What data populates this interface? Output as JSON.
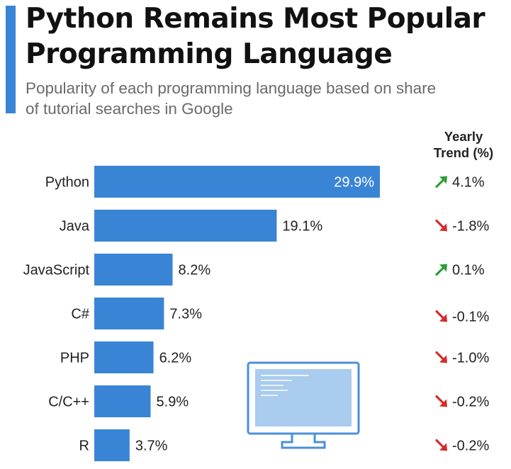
{
  "header": {
    "title_line1": "Python Remains Most Popular",
    "title_line2": "Programming Language",
    "subtitle_line1": "Popularity of each programming language based on share",
    "subtitle_line2": "of tutorial searches in Google",
    "trend_header_line1": "Yearly",
    "trend_header_line2": "Trend (%)"
  },
  "colors": {
    "accent": "#3a84d6",
    "bar": "#3a84d6",
    "trend_up": "#2e9e3a",
    "trend_down": "#d62b2b",
    "monitor_screen": "#a9ccef",
    "monitor_outline": "#4a90d9"
  },
  "chart_data": {
    "type": "bar",
    "orientation": "horizontal",
    "title": "Python Remains Most Popular Programming Language",
    "subtitle": "Popularity of each programming language based on share of tutorial searches in Google",
    "categories": [
      "Python",
      "Java",
      "JavaScript",
      "C#",
      "PHP",
      "C/C++",
      "R"
    ],
    "values": [
      29.9,
      19.1,
      8.2,
      7.3,
      6.2,
      5.9,
      3.7
    ],
    "value_labels": [
      "29.9%",
      "19.1%",
      "8.2%",
      "7.3%",
      "6.2%",
      "5.9%",
      "3.7%"
    ],
    "unit": "%",
    "xlim": [
      0,
      30
    ],
    "grid": false,
    "yearly_trend": {
      "header": "Yearly Trend (%)",
      "values": [
        4.1,
        -1.8,
        0.1,
        -0.1,
        -1.0,
        -0.2,
        -0.2
      ],
      "labels": [
        "4.1%",
        "-1.8%",
        "0.1%",
        "-0.1%",
        "-1.0%",
        "-0.2%",
        "-0.2%"
      ],
      "direction": [
        "up",
        "down",
        "up",
        "down",
        "down",
        "down",
        "down"
      ]
    }
  },
  "decoration": {
    "icon": "computer-monitor-icon"
  }
}
